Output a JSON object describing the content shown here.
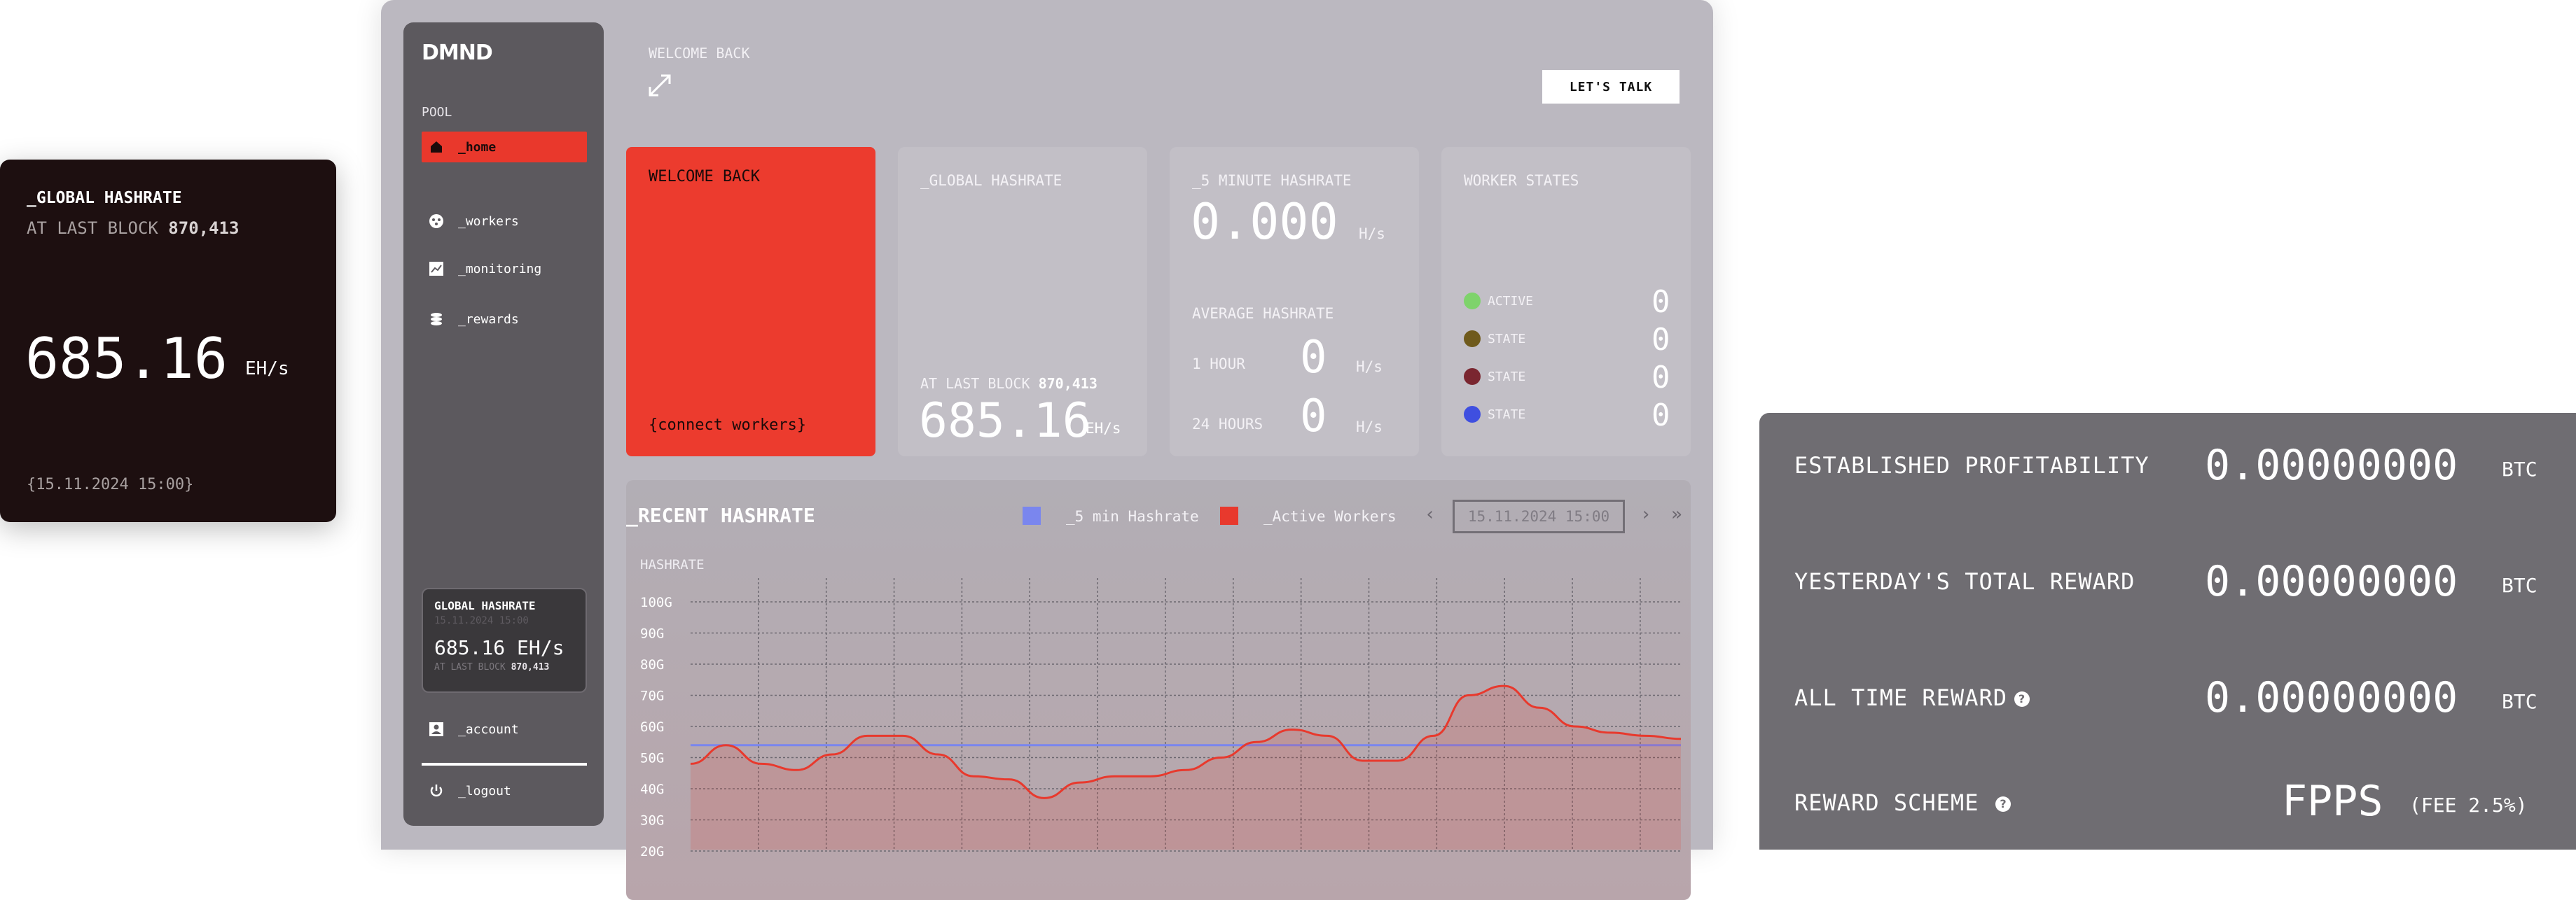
{
  "left_card": {
    "title": "_GLOBAL HASHRATE",
    "subtitle_prefix": "AT LAST BLOCK",
    "block": "870,413",
    "value": "685.16",
    "unit": "EH/s",
    "timestamp": "{15.11.2024  15:00}"
  },
  "sidebar": {
    "logo": "DMND",
    "section": "POOL",
    "items": [
      {
        "label": "_home",
        "icon": "home-icon"
      },
      {
        "label": "_workers",
        "icon": "workers-icon"
      },
      {
        "label": "_monitoring",
        "icon": "chart-icon"
      },
      {
        "label": "_rewards",
        "icon": "coins-icon"
      }
    ],
    "mini": {
      "title": "GLOBAL HASHRATE",
      "date": "15.11.2024  15:00",
      "value": "685.16 EH/s",
      "block_prefix": "AT LAST BLOCK",
      "block": "870,413"
    },
    "account": "_account",
    "logout": "_logout"
  },
  "header": {
    "welcome": "WELCOME BACK",
    "cta": "LET'S TALK"
  },
  "cards": {
    "welcome": {
      "title": "WELCOME BACK",
      "link": "{connect workers}"
    },
    "global": {
      "title": "_GLOBAL HASHRATE",
      "block_prefix": "AT LAST BLOCK",
      "block": "870,413",
      "value": "685.16",
      "unit": "EH/s"
    },
    "five_min": {
      "title": "_5 MINUTE HASHRATE",
      "value": "0.000",
      "unit": "H/s",
      "avg_title": "AVERAGE HASHRATE",
      "h1_label": "1 HOUR",
      "h1_value": "0",
      "h1_unit": "H/s",
      "h24_label": "24 HOURS",
      "h24_value": "0",
      "h24_unit": "H/s"
    },
    "workers": {
      "title": "WORKER STATES",
      "states": [
        {
          "label": "ACTIVE",
          "value": "0",
          "color": "#7ed36b"
        },
        {
          "label": "STATE",
          "value": "0",
          "color": "#6f5a1c"
        },
        {
          "label": "STATE",
          "value": "0",
          "color": "#7a2630"
        },
        {
          "label": "STATE",
          "value": "0",
          "color": "#3f4fe0"
        }
      ]
    }
  },
  "chart_panel": {
    "title": "_RECENT HASHRATE",
    "legend": [
      {
        "name": "_5 min Hashrate",
        "color": "#7a86ee"
      },
      {
        "name": "_Active Workers",
        "color": "#e8392d"
      }
    ],
    "date": "15.11.2024  15:00",
    "nav": {
      "prev": "‹",
      "next": "›",
      "last": "»"
    },
    "ylabel": "HASHRATE"
  },
  "chart_data": {
    "type": "line",
    "ylabel": "HASHRATE",
    "yticks": [
      "100G",
      "90G",
      "80G",
      "70G",
      "60G",
      "50G",
      "40G",
      "30G",
      "20G"
    ],
    "ylim": [
      20,
      100
    ],
    "x": [
      0,
      1,
      2,
      3,
      4,
      5,
      6,
      7,
      8,
      9,
      10,
      11,
      12,
      13,
      14,
      15,
      16,
      17,
      18,
      19,
      20,
      21,
      22,
      23,
      24,
      25,
      26,
      27,
      28
    ],
    "series": [
      {
        "name": "_5 min Hashrate",
        "color": "#7a86ee",
        "values": [
          54,
          54,
          54,
          54,
          54,
          54,
          54,
          54,
          54,
          54,
          54,
          54,
          54,
          54,
          54,
          54,
          54,
          54,
          54,
          54,
          54,
          54,
          54,
          54,
          54,
          54,
          54,
          54,
          54
        ]
      },
      {
        "name": "_Active Workers",
        "color": "#e8392d",
        "values": [
          48,
          54,
          48,
          46,
          51,
          57,
          57,
          51,
          44,
          43,
          37,
          42,
          44,
          44,
          46,
          50,
          55,
          59,
          57,
          49,
          49,
          57,
          70,
          73,
          66,
          60,
          58,
          57,
          56
        ]
      }
    ],
    "grid": true
  },
  "right_card": {
    "rows": [
      {
        "label": "ESTABLISHED PROFITABILITY",
        "value": "0.00000000",
        "unit": "BTC"
      },
      {
        "label": "YESTERDAY'S TOTAL REWARD",
        "value": "0.00000000",
        "unit": "BTC"
      },
      {
        "label": "ALL TIME REWARD",
        "value": "0.00000000",
        "unit": "BTC"
      }
    ],
    "scheme_label": "REWARD SCHEME",
    "scheme_value": "FPPS",
    "scheme_fee": "(FEE 2.5%)",
    "help": "?"
  }
}
